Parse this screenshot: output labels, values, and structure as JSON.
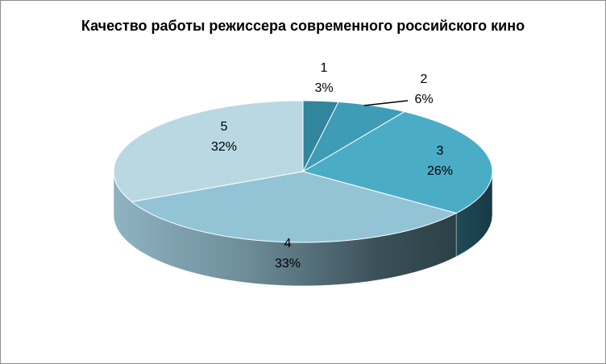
{
  "chart_data": {
    "type": "pie",
    "title": "Качество работы режиссера современного российского кино",
    "categories": [
      "1",
      "2",
      "3",
      "4",
      "5"
    ],
    "values": [
      3,
      6,
      26,
      33,
      32
    ],
    "value_labels": [
      "3%",
      "6%",
      "26%",
      "33%",
      "32%"
    ],
    "colors": [
      "#31859c",
      "#3e9cb6",
      "#4bacc6",
      "#93c4d5",
      "#b9d8e2"
    ],
    "legend": "none",
    "style": "3d"
  }
}
